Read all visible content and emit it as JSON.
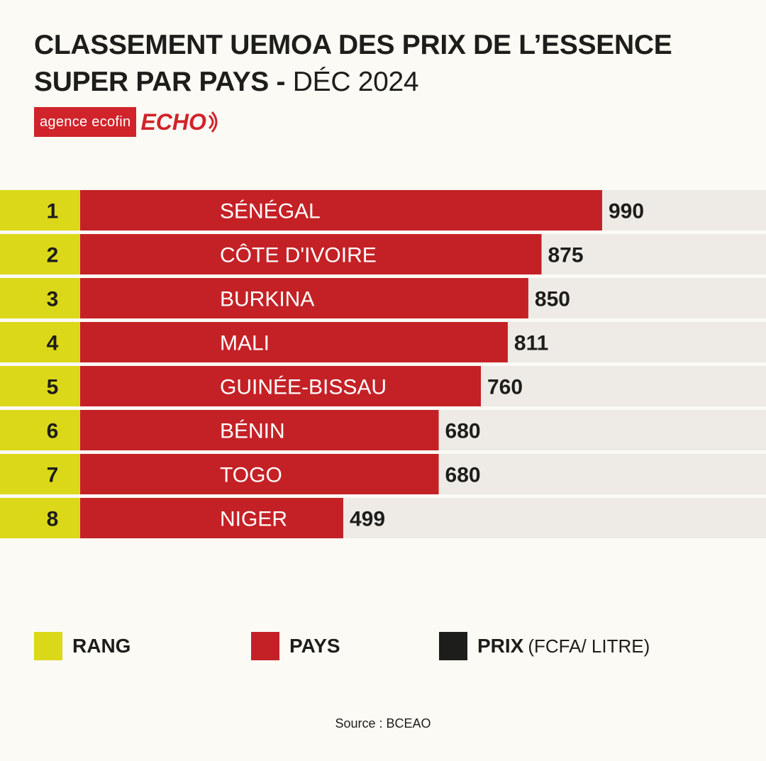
{
  "title": {
    "line1": "CLASSEMENT UEMOA DES PRIX DE L’ESSENCE",
    "line2_bold": "SUPER PAR PAYS - ",
    "line2_date": "DÉC 2024"
  },
  "logo": {
    "agency": "agence ecofin",
    "echo": "ECHO"
  },
  "colors": {
    "rank": "#dbd81a",
    "country": "#c42126",
    "price": "#1d1d1b",
    "track": "#eeebe7",
    "background": "#fbfaf4"
  },
  "chart_data": {
    "type": "bar",
    "orientation": "horizontal",
    "title": "CLASSEMENT UEMOA DES PRIX DE L’ESSENCE SUPER PAR PAYS - DÉC 2024",
    "ranks": [
      "1",
      "2",
      "3",
      "4",
      "5",
      "6",
      "7",
      "8"
    ],
    "categories": [
      "SÉNÉGAL",
      "CÔTE D'IVOIRE",
      "BURKINA",
      "MALI",
      "GUINÉE-BISSAU",
      "BÉNIN",
      "TOGO",
      "NIGER"
    ],
    "values": [
      990,
      875,
      850,
      811,
      760,
      680,
      680,
      499
    ],
    "unit": "FCFA/ LITRE",
    "xlim": [
      0,
      990
    ]
  },
  "legend": {
    "rank_label": "RANG",
    "country_label": "PAYS",
    "price_label": "PRIX",
    "price_unit": "(FCFA/ LITRE)"
  },
  "source": "Source : BCEAO"
}
